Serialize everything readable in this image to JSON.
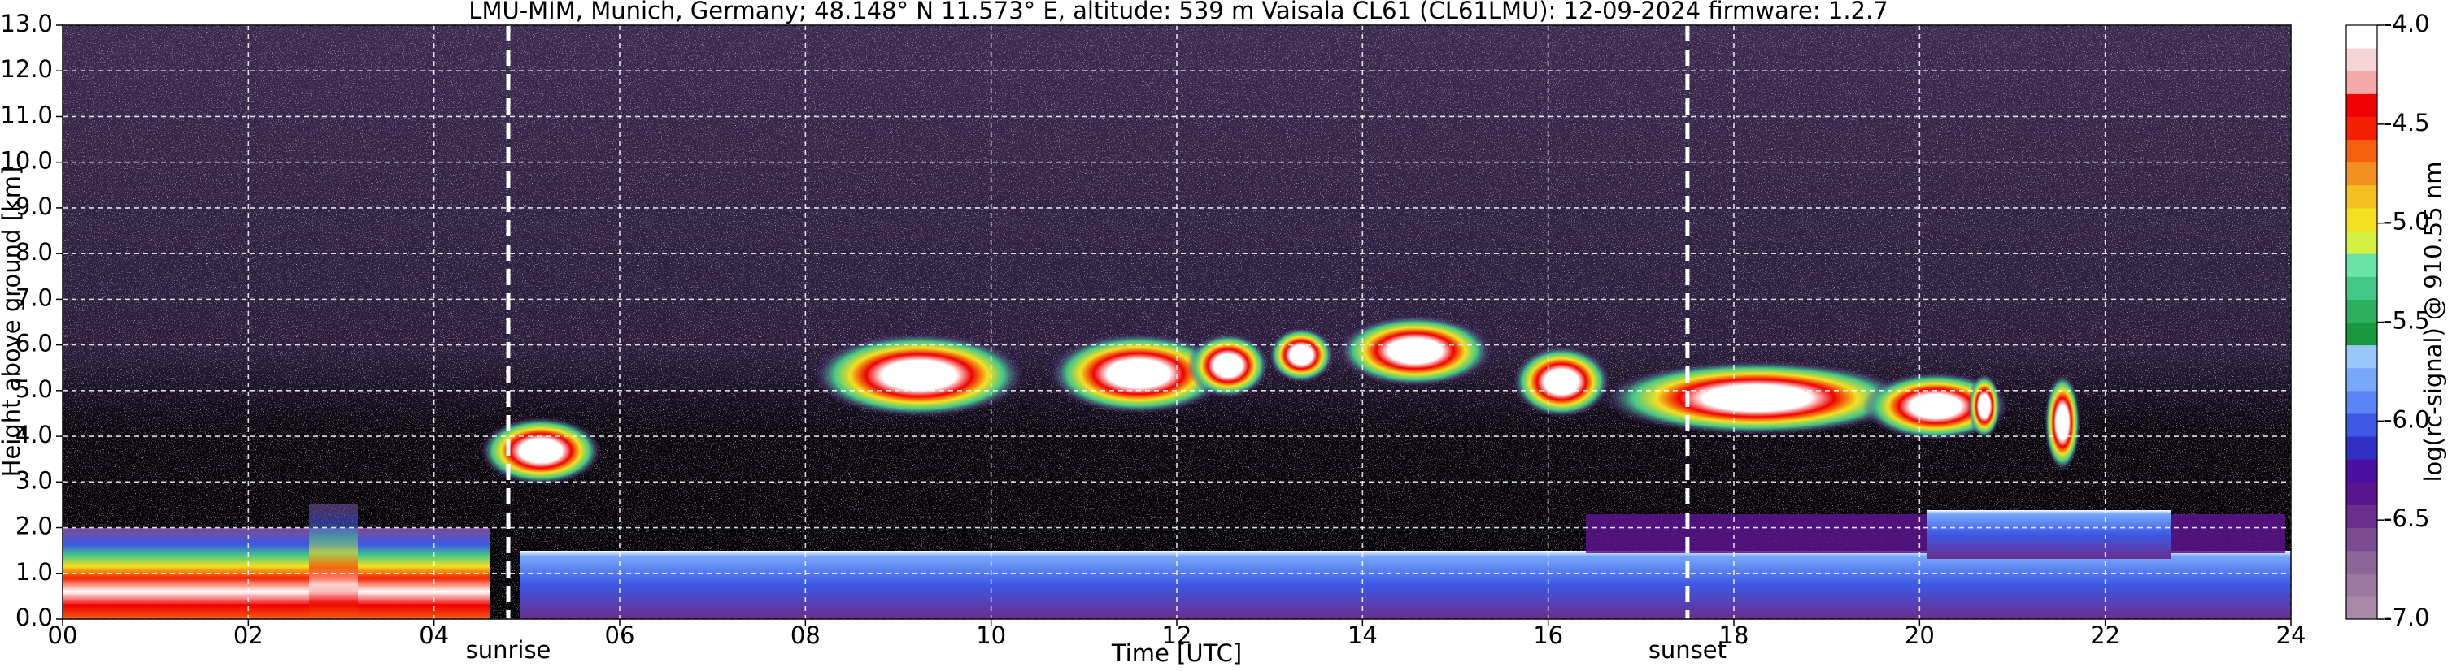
{
  "chart_data": {
    "type": "heatmap",
    "title": "LMU-MIM, Munich, Germany; 48.148° N 11.573° E, altitude: 539 m    Vaisala CL61 (CL61LMU): 12-09-2024    firmware: 1.2.7",
    "x_label": "Time [UTC]",
    "y_label": "Height above ground [km]",
    "colorbar_label": "log(rc-signal) @ 910.55 nm",
    "xlim": [
      0,
      24
    ],
    "xticks": [
      {
        "value": 0,
        "label": "00"
      },
      {
        "value": 2,
        "label": "02"
      },
      {
        "value": 4,
        "label": "04"
      },
      {
        "value": 6,
        "label": "06"
      },
      {
        "value": 8,
        "label": "08"
      },
      10,
      12,
      14,
      16,
      18,
      20,
      22,
      24
    ],
    "ylim": [
      0,
      13
    ],
    "yticks": [
      {
        "value": 0,
        "label": "0.0"
      },
      {
        "value": 1,
        "label": "1.0"
      },
      {
        "value": 2,
        "label": "2.0"
      },
      {
        "value": 3,
        "label": "3.0"
      },
      {
        "value": 4,
        "label": "4.0"
      },
      {
        "value": 5,
        "label": "5.0"
      },
      {
        "value": 6,
        "label": "6.0"
      },
      {
        "value": 7,
        "label": "7.0"
      },
      {
        "value": 8,
        "label": "8.0"
      },
      {
        "value": 9,
        "label": "9.0"
      },
      {
        "value": 10,
        "label": "10.0"
      },
      {
        "value": 11,
        "label": "11.0"
      },
      {
        "value": 12,
        "label": "12.0"
      },
      {
        "value": 13,
        "label": "13.0"
      }
    ],
    "clim": [
      -7,
      -4
    ],
    "cticks": [
      {
        "value": -4,
        "label": "-4.0"
      },
      -4.5,
      {
        "value": -5,
        "label": "-5.0"
      },
      -5.5,
      {
        "value": -6,
        "label": "-6.0"
      },
      -6.5,
      {
        "value": -7,
        "label": "-7.0"
      }
    ],
    "colormap": [
      "#a88aa8",
      "#9a78a0",
      "#8c6698",
      "#7c4c92",
      "#6a2e8c",
      "#5a148e",
      "#4a10a4",
      "#3030c4",
      "#3c58e4",
      "#5a84f4",
      "#78a8fa",
      "#98c8fa",
      "#189a3c",
      "#2cb060",
      "#44c888",
      "#68e4a8",
      "#d4f040",
      "#f4e020",
      "#f4c020",
      "#f49020",
      "#f46010",
      "#f42000",
      "#f00000",
      "#f4a8a8",
      "#f4d4d4",
      "#ffffff"
    ],
    "grid": true,
    "annotations": [
      {
        "text": "sunrise",
        "x": 4.8
      },
      {
        "text": "sunset",
        "x": 17.5
      }
    ]
  }
}
